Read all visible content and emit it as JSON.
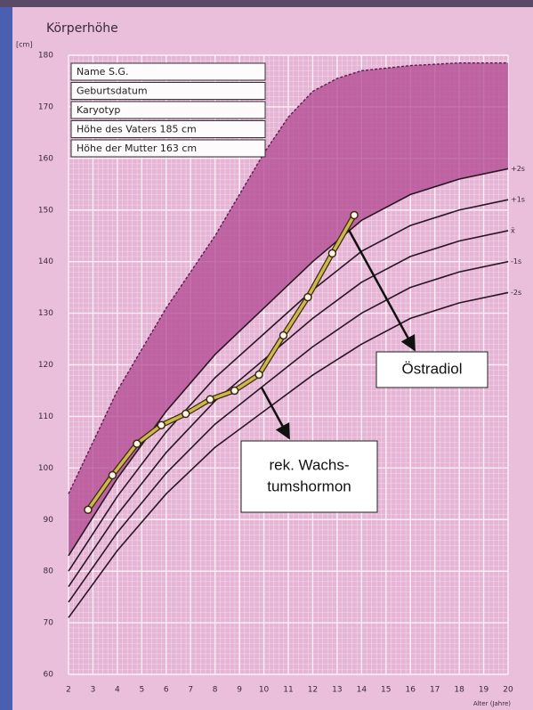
{
  "chart_data": {
    "type": "line",
    "title": "Körperhöhe",
    "y_label": "[cm]",
    "x_label": "Alter (Jahre)",
    "xlim": [
      2,
      20
    ],
    "xticks": [
      2,
      3,
      4,
      5,
      6,
      7,
      8,
      9,
      10,
      11,
      12,
      13,
      14,
      15,
      16,
      17,
      18,
      19,
      20
    ],
    "ylim": [
      60,
      180
    ],
    "yticks": [
      60,
      70,
      80,
      90,
      100,
      110,
      120,
      130,
      140,
      150,
      160,
      170,
      180
    ],
    "grid": true,
    "info_box": [
      "Name  S.G.",
      "Geburtsdatum",
      "Karyotyp",
      "Höhe des Vaters  185 cm",
      "Höhe der Mutter  163 cm"
    ],
    "annotations": [
      {
        "lines": [
          "Östradiol"
        ]
      },
      {
        "lines": [
          "rek. Wachs-",
          "tumshormon"
        ]
      }
    ],
    "series": [
      {
        "color": "#5a1e4a",
        "dashed": true,
        "x": [
          2,
          3,
          4,
          5,
          6,
          7,
          8,
          9,
          10,
          11,
          12,
          13,
          14,
          16,
          18,
          20
        ],
        "values": [
          95,
          105,
          115,
          123,
          131,
          138,
          145,
          153,
          161,
          168,
          173,
          175.5,
          177,
          178,
          178.5,
          178.5
        ]
      },
      {
        "name": "+2s",
        "color": "#2a1624",
        "x": [
          2,
          4,
          6,
          8,
          10,
          12,
          14,
          16,
          18,
          20
        ],
        "values": [
          83,
          98,
          111,
          122,
          131,
          140,
          148,
          153,
          156,
          158
        ]
      },
      {
        "name": "+1s",
        "color": "#2a1624",
        "x": [
          2,
          4,
          6,
          8,
          10,
          12,
          14,
          16,
          18,
          20
        ],
        "values": [
          80,
          94.5,
          107,
          117.5,
          126,
          134.5,
          142,
          147,
          150,
          152
        ]
      },
      {
        "name": "x̄",
        "color": "#2a1624",
        "x": [
          2,
          4,
          6,
          8,
          10,
          12,
          14,
          16,
          18,
          20
        ],
        "values": [
          77,
          91,
          103,
          113,
          121,
          129,
          136,
          141,
          144,
          146
        ]
      },
      {
        "name": "-1s",
        "color": "#2a1624",
        "x": [
          2,
          4,
          6,
          8,
          10,
          12,
          14,
          16,
          18,
          20
        ],
        "values": [
          74,
          87.5,
          99,
          108.5,
          116,
          123.5,
          130,
          135,
          138,
          140
        ]
      },
      {
        "name": "-2s",
        "color": "#2a1624",
        "x": [
          2,
          4,
          6,
          8,
          10,
          12,
          14,
          16,
          18,
          20
        ],
        "values": [
          71,
          84,
          95,
          104,
          111,
          118,
          124,
          129,
          132,
          134
        ]
      },
      {
        "color": "#cdb84c",
        "markers": true,
        "x": [
          2.8,
          3.8,
          4.8,
          5.8,
          6.8,
          7.8,
          8.8,
          9.8,
          10.8,
          11.8,
          12.8,
          13.7
        ],
        "values": [
          91.9,
          98.6,
          104.7,
          108.3,
          110.5,
          113.3,
          115,
          118.1,
          125.7,
          133.1,
          141.6,
          149
        ]
      }
    ]
  }
}
